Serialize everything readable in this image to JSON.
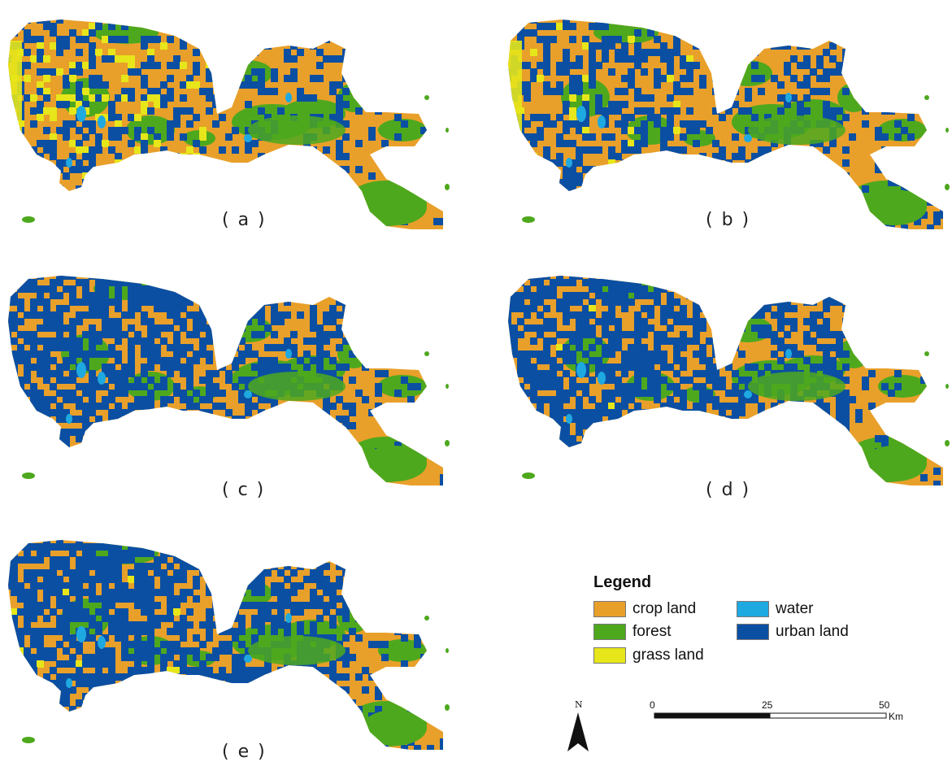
{
  "panels": [
    {
      "id": "a",
      "label": "( a )"
    },
    {
      "id": "b",
      "label": "( b )"
    },
    {
      "id": "c",
      "label": "( c )"
    },
    {
      "id": "d",
      "label": "( d )"
    },
    {
      "id": "e",
      "label": "( e )"
    }
  ],
  "colors": {
    "crop_land": "#E8A02A",
    "forest": "#4EA81E",
    "grass_land": "#E6E61A",
    "water": "#1FA9E1",
    "urban_land": "#0B4FA3"
  },
  "legend": {
    "title": "Legend",
    "items": [
      {
        "label": "crop land",
        "color": "#E8A02A"
      },
      {
        "label": "forest",
        "color": "#4EA81E"
      },
      {
        "label": "grass land",
        "color": "#E6E61A"
      },
      {
        "label": "water",
        "color": "#1FA9E1"
      },
      {
        "label": "urban land",
        "color": "#0B4FA3"
      }
    ]
  },
  "north_arrow": {
    "label": "N"
  },
  "scale_bar": {
    "ticks": [
      "0",
      "25",
      "50"
    ],
    "unit": "Km"
  }
}
